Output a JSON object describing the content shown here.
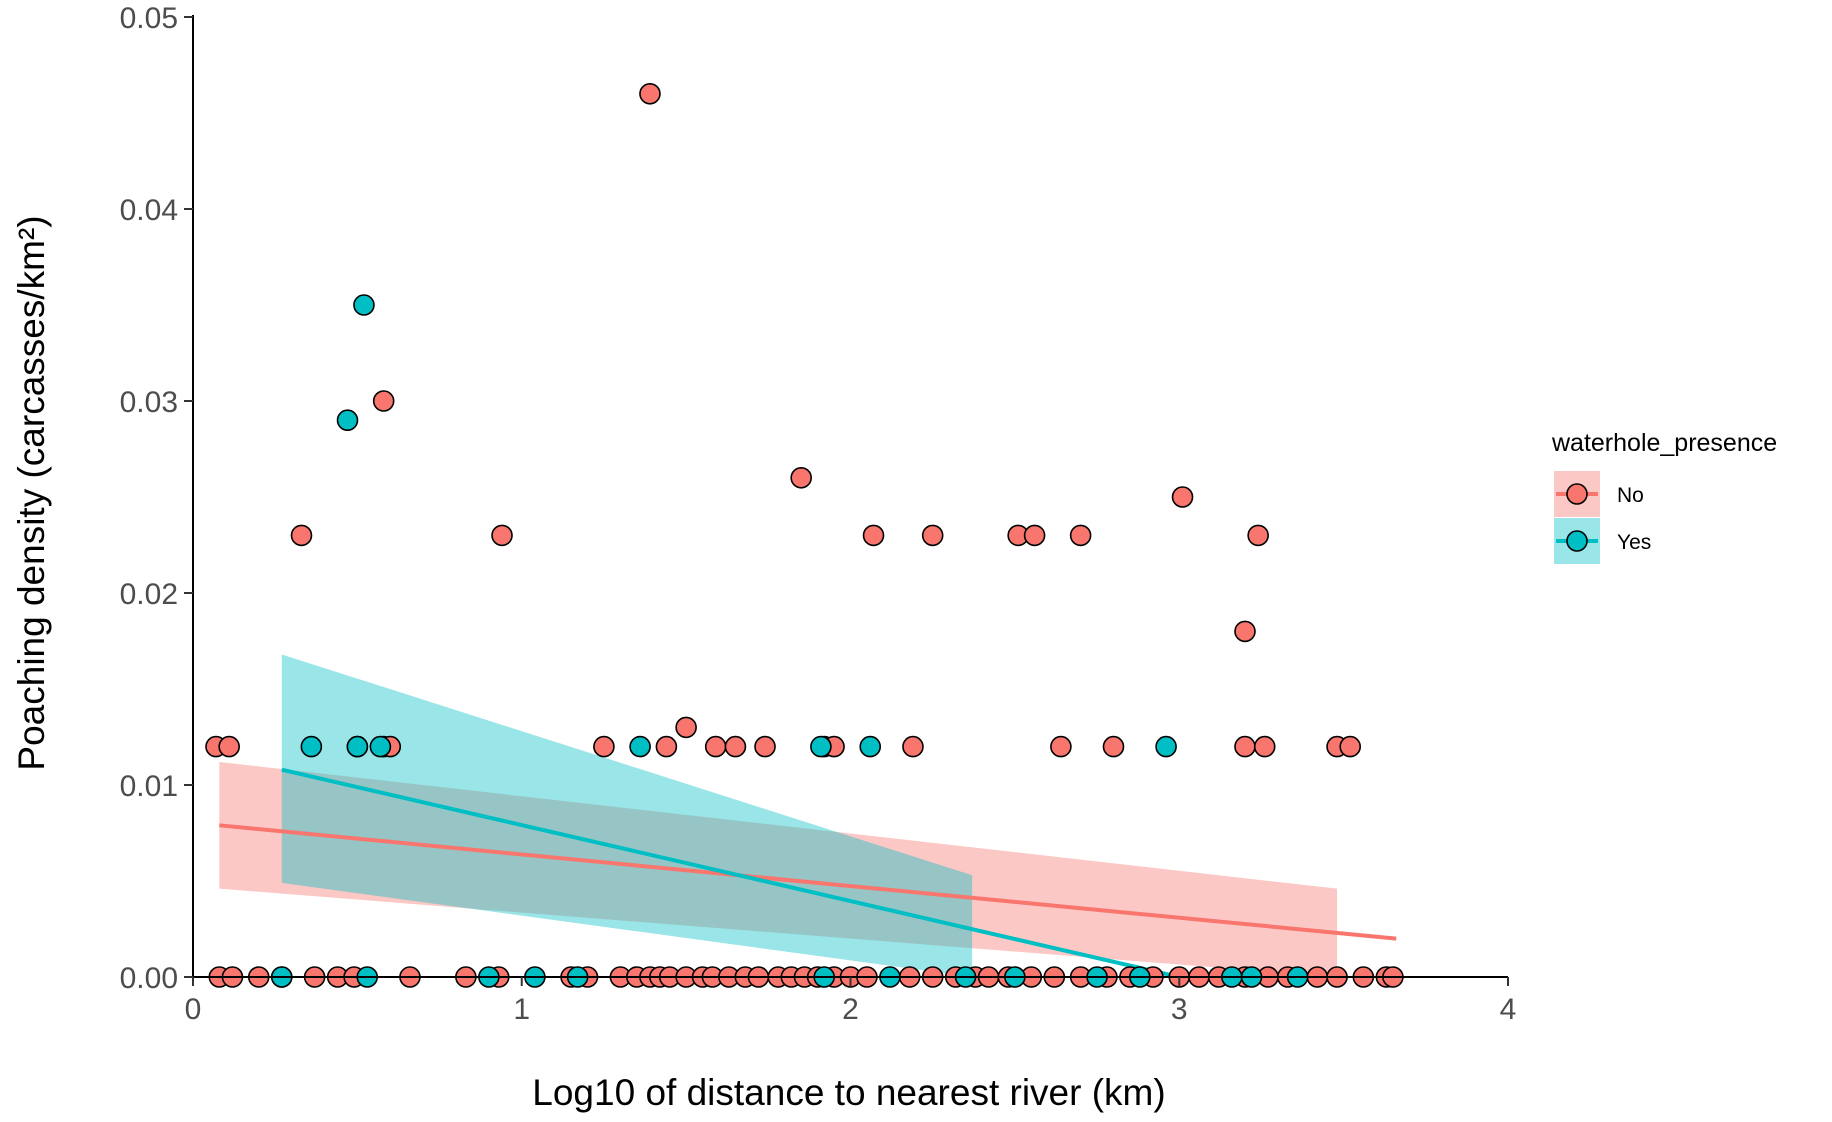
{
  "chart_data": {
    "type": "scatter",
    "title": "",
    "xlabel": "Log10 of distance to nearest river (km)",
    "ylabel": "Poaching density (carcasses/km²)",
    "xlim": [
      0,
      4
    ],
    "ylim": [
      0,
      0.05
    ],
    "x_ticks": [
      "0",
      "1",
      "2",
      "3",
      "4"
    ],
    "y_ticks": [
      "0.00",
      "0.01",
      "0.02",
      "0.03",
      "0.04",
      "0.05"
    ],
    "grid": false,
    "legend": {
      "title": "waterhole_presence",
      "position": "right",
      "entries": [
        "No",
        "Yes"
      ]
    },
    "colors": {
      "No": "#F8766D",
      "Yes": "#00BFC4"
    },
    "series": [
      {
        "name": "No",
        "color": "#F8766D",
        "points": [
          [
            0.08,
            0.0
          ],
          [
            0.12,
            0.0
          ],
          [
            0.2,
            0.0
          ],
          [
            0.27,
            0.0
          ],
          [
            0.37,
            0.0
          ],
          [
            0.44,
            0.0
          ],
          [
            0.49,
            0.0
          ],
          [
            0.66,
            0.0
          ],
          [
            0.83,
            0.0
          ],
          [
            0.93,
            0.0
          ],
          [
            1.15,
            0.0
          ],
          [
            1.2,
            0.0
          ],
          [
            1.3,
            0.0
          ],
          [
            1.35,
            0.0
          ],
          [
            1.39,
            0.0
          ],
          [
            1.42,
            0.0
          ],
          [
            1.45,
            0.0
          ],
          [
            1.5,
            0.0
          ],
          [
            1.55,
            0.0
          ],
          [
            1.58,
            0.0
          ],
          [
            1.63,
            0.0
          ],
          [
            1.68,
            0.0
          ],
          [
            1.72,
            0.0
          ],
          [
            1.78,
            0.0
          ],
          [
            1.82,
            0.0
          ],
          [
            1.86,
            0.0
          ],
          [
            1.9,
            0.0
          ],
          [
            1.95,
            0.0
          ],
          [
            2.0,
            0.0
          ],
          [
            2.05,
            0.0
          ],
          [
            2.18,
            0.0
          ],
          [
            2.25,
            0.0
          ],
          [
            2.32,
            0.0
          ],
          [
            2.38,
            0.0
          ],
          [
            2.42,
            0.0
          ],
          [
            2.48,
            0.0
          ],
          [
            2.55,
            0.0
          ],
          [
            2.62,
            0.0
          ],
          [
            2.7,
            0.0
          ],
          [
            2.78,
            0.0
          ],
          [
            2.85,
            0.0
          ],
          [
            2.92,
            0.0
          ],
          [
            3.0,
            0.0
          ],
          [
            3.06,
            0.0
          ],
          [
            3.12,
            0.0
          ],
          [
            3.2,
            0.0
          ],
          [
            3.27,
            0.0
          ],
          [
            3.33,
            0.0
          ],
          [
            3.42,
            0.0
          ],
          [
            3.48,
            0.0
          ],
          [
            3.56,
            0.0
          ],
          [
            3.63,
            0.0
          ],
          [
            3.65,
            0.0
          ],
          [
            0.07,
            0.012
          ],
          [
            0.11,
            0.012
          ],
          [
            0.5,
            0.012
          ],
          [
            0.58,
            0.012
          ],
          [
            0.6,
            0.012
          ],
          [
            1.25,
            0.012
          ],
          [
            1.44,
            0.012
          ],
          [
            1.59,
            0.012
          ],
          [
            1.65,
            0.012
          ],
          [
            1.74,
            0.012
          ],
          [
            1.92,
            0.012
          ],
          [
            1.95,
            0.012
          ],
          [
            2.19,
            0.012
          ],
          [
            2.64,
            0.012
          ],
          [
            2.8,
            0.012
          ],
          [
            3.2,
            0.012
          ],
          [
            3.26,
            0.012
          ],
          [
            3.48,
            0.012
          ],
          [
            3.52,
            0.012
          ],
          [
            1.5,
            0.013
          ],
          [
            3.2,
            0.018
          ],
          [
            0.33,
            0.023
          ],
          [
            0.94,
            0.023
          ],
          [
            2.07,
            0.023
          ],
          [
            2.25,
            0.023
          ],
          [
            2.51,
            0.023
          ],
          [
            2.56,
            0.023
          ],
          [
            2.7,
            0.023
          ],
          [
            3.24,
            0.023
          ],
          [
            3.01,
            0.025
          ],
          [
            1.85,
            0.026
          ],
          [
            0.58,
            0.03
          ],
          [
            1.39,
            0.046
          ]
        ]
      },
      {
        "name": "Yes",
        "color": "#00BFC4",
        "points": [
          [
            0.27,
            0.0
          ],
          [
            0.53,
            0.0
          ],
          [
            0.9,
            0.0
          ],
          [
            1.04,
            0.0
          ],
          [
            1.17,
            0.0
          ],
          [
            1.92,
            0.0
          ],
          [
            2.12,
            0.0
          ],
          [
            2.35,
            0.0
          ],
          [
            2.5,
            0.0
          ],
          [
            2.75,
            0.0
          ],
          [
            2.88,
            0.0
          ],
          [
            3.16,
            0.0
          ],
          [
            3.22,
            0.0
          ],
          [
            3.36,
            0.0
          ],
          [
            0.36,
            0.012
          ],
          [
            0.5,
            0.012
          ],
          [
            0.57,
            0.012
          ],
          [
            1.36,
            0.012
          ],
          [
            1.91,
            0.012
          ],
          [
            2.06,
            0.012
          ],
          [
            2.96,
            0.012
          ],
          [
            0.47,
            0.029
          ],
          [
            0.52,
            0.035
          ]
        ]
      }
    ],
    "fits": [
      {
        "name": "No",
        "color": "#F8766D",
        "line": [
          [
            0.08,
            0.0079
          ],
          [
            3.66,
            0.002
          ]
        ],
        "ribbon_upper": [
          [
            0.08,
            0.0112
          ],
          [
            3.48,
            0.0046
          ]
        ],
        "ribbon_lower": [
          [
            0.08,
            0.0046
          ],
          [
            3.48,
            0.0
          ]
        ]
      },
      {
        "name": "Yes",
        "color": "#00BFC4",
        "line": [
          [
            0.27,
            0.0108
          ],
          [
            3.0,
            0.0
          ]
        ],
        "ribbon_upper": [
          [
            0.27,
            0.0168
          ],
          [
            2.37,
            0.0053
          ]
        ],
        "ribbon_lower": [
          [
            0.27,
            0.0049
          ],
          [
            2.37,
            0.0
          ]
        ]
      }
    ]
  }
}
